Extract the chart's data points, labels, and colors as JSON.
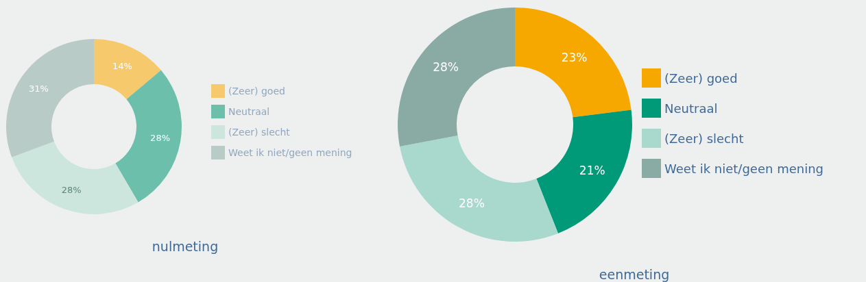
{
  "chart_data": [
    {
      "type": "donut",
      "title": "nulmeting",
      "categories": [
        "(Zeer) goed",
        "Neutraal",
        "(Zeer) slecht",
        "Weet ik niet/geen mening"
      ],
      "values": [
        14,
        28,
        28,
        31
      ],
      "value_labels": [
        "14%",
        "28%",
        "28%",
        "31%"
      ],
      "colors": [
        "#f5c96c",
        "#6cc0ab",
        "#cde6dd",
        "#b9cbc6"
      ],
      "legend": "right"
    },
    {
      "type": "donut",
      "title": "eenmeting",
      "categories": [
        "(Zeer) goed",
        "Neutraal",
        "(Zeer) slecht",
        "Weet ik niet/geen mening"
      ],
      "values": [
        23,
        21,
        28,
        28
      ],
      "value_labels": [
        "23%",
        "21%",
        "28%",
        "28%"
      ],
      "colors": [
        "#f7a800",
        "#009a78",
        "#a9d8cd",
        "#8aaba4"
      ],
      "legend": "right"
    }
  ]
}
